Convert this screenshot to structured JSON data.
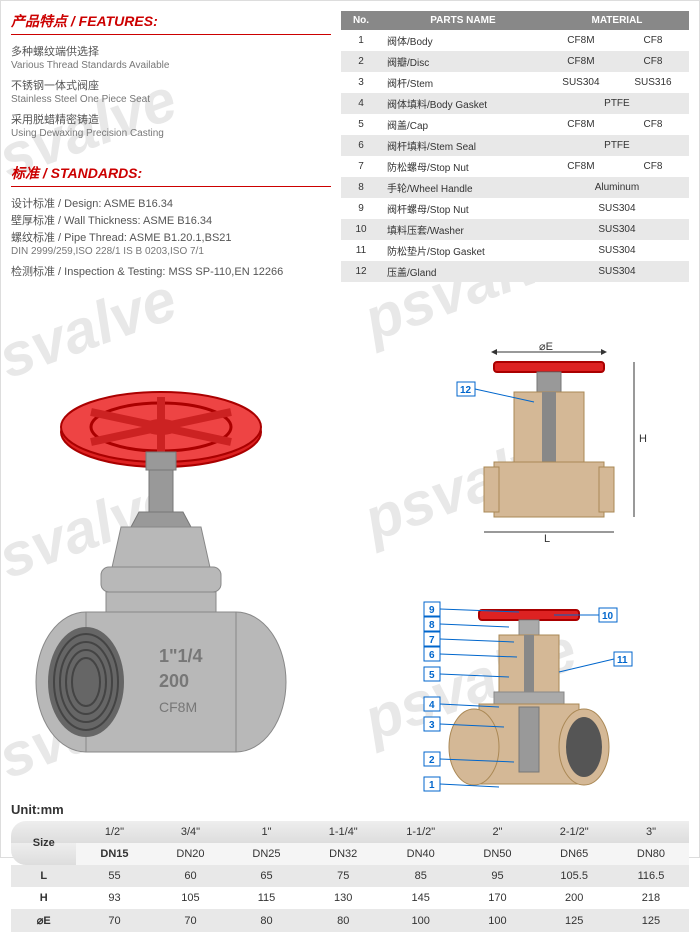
{
  "watermark_text": "psvalve",
  "features": {
    "title": "产品特点 / FEATURES:",
    "items": [
      {
        "cn": "多种螺纹端供选择",
        "en": "Various Thread Standards Available"
      },
      {
        "cn": "不锈钢一体式阀座",
        "en": "Stainless Steel One Piece Seat"
      },
      {
        "cn": "采用脱蜡精密铸造",
        "en": "Using Dewaxing Precision Casting"
      }
    ]
  },
  "standards": {
    "title": "标准 / STANDARDS:",
    "items": [
      {
        "cn": "设计标准 / Design: ASME B16.34",
        "en": ""
      },
      {
        "cn": "壁厚标准 / Wall Thickness: ASME B16.34",
        "en": ""
      },
      {
        "cn": "螺纹标准 / Pipe Thread: ASME B1.20.1,BS21",
        "en": "DIN 2999/259,ISO 228/1 IS B 0203,ISO 7/1"
      },
      {
        "cn": "检测标准 / Inspection & Testing: MSS SP-110,EN 12266",
        "en": ""
      }
    ]
  },
  "parts": {
    "headers": {
      "no": "No.",
      "name": "PARTS NAME",
      "mat": "MATERIAL"
    },
    "rows": [
      {
        "no": "1",
        "name": "阀体/Body",
        "m1": "CF8M",
        "m2": "CF8"
      },
      {
        "no": "2",
        "name": "阀瓣/Disc",
        "m1": "CF8M",
        "m2": "CF8"
      },
      {
        "no": "3",
        "name": "阀杆/Stem",
        "m1": "SUS304",
        "m2": "SUS316"
      },
      {
        "no": "4",
        "name": "阀体填料/Body Gasket",
        "m1": "PTFE",
        "m2": ""
      },
      {
        "no": "5",
        "name": "阀盖/Cap",
        "m1": "CF8M",
        "m2": "CF8"
      },
      {
        "no": "6",
        "name": "阀杆填料/Stem Seal",
        "m1": "PTFE",
        "m2": ""
      },
      {
        "no": "7",
        "name": "防松螺母/Stop Nut",
        "m1": "CF8M",
        "m2": "CF8"
      },
      {
        "no": "8",
        "name": "手轮/Wheel Handle",
        "m1": "Aluminum",
        "m2": ""
      },
      {
        "no": "9",
        "name": "阀杆螺母/Stop Nut",
        "m1": "SUS304",
        "m2": ""
      },
      {
        "no": "10",
        "name": "填料压套/Washer",
        "m1": "SUS304",
        "m2": ""
      },
      {
        "no": "11",
        "name": "防松垫片/Stop Gasket",
        "m1": "SUS304",
        "m2": ""
      },
      {
        "no": "12",
        "name": "压盖/Gland",
        "m1": "SUS304",
        "m2": ""
      }
    ]
  },
  "diagram": {
    "dim_e": "⌀E",
    "dim_h": "H",
    "dim_l": "L",
    "callouts": [
      "1",
      "2",
      "3",
      "4",
      "5",
      "6",
      "7",
      "8",
      "9",
      "10",
      "11",
      "12"
    ],
    "valve_marking_1": "1\"1/4",
    "valve_marking_2": "200",
    "valve_marking_3": "CF8M"
  },
  "sizes": {
    "unit": "Unit:mm",
    "row_labels": {
      "size": "Size",
      "l": "L",
      "h": "H",
      "e": "⌀E"
    },
    "cols": [
      {
        "size": "1/2\"",
        "dn": "DN15",
        "l": "55",
        "h": "93",
        "e": "70"
      },
      {
        "size": "3/4\"",
        "dn": "DN20",
        "l": "60",
        "h": "105",
        "e": "70"
      },
      {
        "size": "1\"",
        "dn": "DN25",
        "l": "65",
        "h": "115",
        "e": "80"
      },
      {
        "size": "1-1/4\"",
        "dn": "DN32",
        "l": "75",
        "h": "130",
        "e": "80"
      },
      {
        "size": "1-1/2\"",
        "dn": "DN40",
        "l": "85",
        "h": "145",
        "e": "100"
      },
      {
        "size": "2\"",
        "dn": "DN50",
        "l": "95",
        "h": "170",
        "e": "100"
      },
      {
        "size": "2-1/2\"",
        "dn": "DN65",
        "l": "105.5",
        "h": "200",
        "e": "125"
      },
      {
        "size": "3\"",
        "dn": "DN80",
        "l": "116.5",
        "h": "218",
        "e": "125"
      }
    ]
  },
  "colors": {
    "accent": "#c00",
    "wheel": "#d22",
    "callout": "#06c"
  }
}
